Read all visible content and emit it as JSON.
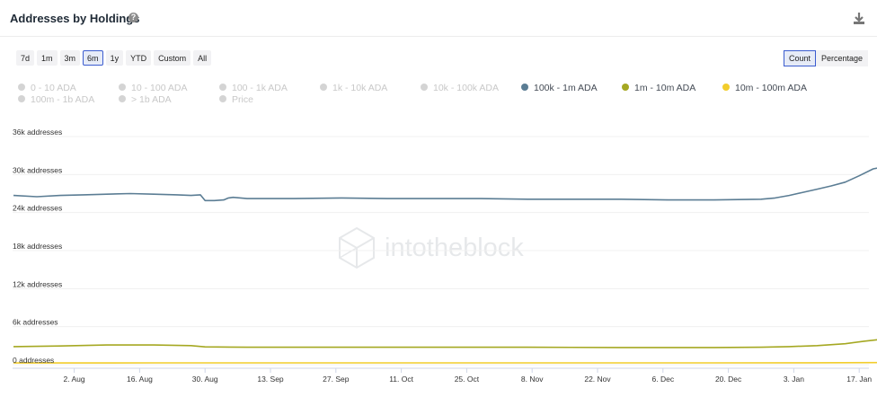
{
  "header": {
    "title": "Addresses by Holdings",
    "help_icon": "question-circle-icon",
    "download_icon": "download-icon"
  },
  "range_buttons": [
    "7d",
    "1m",
    "3m",
    "6m",
    "1y",
    "YTD",
    "Custom",
    "All"
  ],
  "range_selected": "6m",
  "mode_buttons": [
    "Count",
    "Percentage"
  ],
  "mode_selected": "Count",
  "legend": [
    {
      "label": "0 - 10 ADA",
      "active": false,
      "color": "#d4d4d4"
    },
    {
      "label": "10 - 100 ADA",
      "active": false,
      "color": "#d4d4d4"
    },
    {
      "label": "100 - 1k ADA",
      "active": false,
      "color": "#d4d4d4"
    },
    {
      "label": "1k - 10k ADA",
      "active": false,
      "color": "#d4d4d4"
    },
    {
      "label": "10k - 100k ADA",
      "active": false,
      "color": "#d4d4d4"
    },
    {
      "label": "100k - 1m ADA",
      "active": true,
      "color": "#5b7d94"
    },
    {
      "label": "1m - 10m ADA",
      "active": true,
      "color": "#a5a822"
    },
    {
      "label": "10m - 100m ADA",
      "active": true,
      "color": "#f2cd2c"
    },
    {
      "label": "100m - 1b ADA",
      "active": false,
      "color": "#d4d4d4"
    },
    {
      "label": "> 1b ADA",
      "active": false,
      "color": "#d4d4d4"
    },
    {
      "label": "Price",
      "active": false,
      "color": "#d4d4d4"
    }
  ],
  "watermark": "intotheblock",
  "chart_data": {
    "type": "line",
    "title": "Addresses by Holdings",
    "ylim": [
      0,
      36000
    ],
    "yticks": [
      {
        "value": 0,
        "label": "0 addresses"
      },
      {
        "value": 6000,
        "label": "6k addresses"
      },
      {
        "value": 12000,
        "label": "12k addresses"
      },
      {
        "value": 18000,
        "label": "18k addresses"
      },
      {
        "value": 24000,
        "label": "24k addresses"
      },
      {
        "value": 30000,
        "label": "30k addresses"
      },
      {
        "value": 36000,
        "label": "36k addresses"
      }
    ],
    "xticks": [
      {
        "day": 13,
        "label": "2. Aug"
      },
      {
        "day": 27,
        "label": "16. Aug"
      },
      {
        "day": 41,
        "label": "30. Aug"
      },
      {
        "day": 55,
        "label": "13. Sep"
      },
      {
        "day": 69,
        "label": "27. Sep"
      },
      {
        "day": 83,
        "label": "11. Oct"
      },
      {
        "day": 97,
        "label": "25. Oct"
      },
      {
        "day": 111,
        "label": "8. Nov"
      },
      {
        "day": 125,
        "label": "22. Nov"
      },
      {
        "day": 139,
        "label": "6. Dec"
      },
      {
        "day": 153,
        "label": "20. Dec"
      },
      {
        "day": 167,
        "label": "3. Jan"
      },
      {
        "day": 181,
        "label": "17. Jan"
      }
    ],
    "series": [
      {
        "name": "100k - 1m ADA",
        "color": "#5b7d94",
        "points": [
          [
            0,
            26700
          ],
          [
            5,
            26500
          ],
          [
            10,
            26700
          ],
          [
            15,
            26800
          ],
          [
            20,
            26900
          ],
          [
            25,
            27000
          ],
          [
            30,
            26900
          ],
          [
            35,
            26800
          ],
          [
            38,
            26700
          ],
          [
            40,
            26800
          ],
          [
            41,
            25900
          ],
          [
            43,
            25900
          ],
          [
            45,
            26000
          ],
          [
            46,
            26300
          ],
          [
            47,
            26400
          ],
          [
            50,
            26200
          ],
          [
            60,
            26200
          ],
          [
            70,
            26300
          ],
          [
            80,
            26200
          ],
          [
            90,
            26200
          ],
          [
            100,
            26200
          ],
          [
            110,
            26100
          ],
          [
            120,
            26100
          ],
          [
            130,
            26100
          ],
          [
            140,
            26000
          ],
          [
            150,
            26000
          ],
          [
            160,
            26100
          ],
          [
            163,
            26300
          ],
          [
            166,
            26700
          ],
          [
            169,
            27200
          ],
          [
            172,
            27700
          ],
          [
            175,
            28200
          ],
          [
            178,
            28800
          ],
          [
            181,
            29800
          ],
          [
            184,
            30900
          ],
          [
            187,
            31300
          ]
        ]
      },
      {
        "name": "1m - 10m ADA",
        "color": "#a5a822",
        "points": [
          [
            0,
            2850
          ],
          [
            10,
            2950
          ],
          [
            20,
            3100
          ],
          [
            30,
            3100
          ],
          [
            38,
            3000
          ],
          [
            41,
            2800
          ],
          [
            50,
            2750
          ],
          [
            70,
            2750
          ],
          [
            90,
            2750
          ],
          [
            110,
            2750
          ],
          [
            130,
            2700
          ],
          [
            150,
            2700
          ],
          [
            160,
            2750
          ],
          [
            166,
            2850
          ],
          [
            172,
            3000
          ],
          [
            178,
            3300
          ],
          [
            182,
            3700
          ],
          [
            187,
            4100
          ]
        ]
      },
      {
        "name": "10m - 100m ADA",
        "color": "#f2cd2c",
        "points": [
          [
            0,
            270
          ],
          [
            30,
            280
          ],
          [
            60,
            280
          ],
          [
            90,
            285
          ],
          [
            120,
            285
          ],
          [
            150,
            290
          ],
          [
            170,
            300
          ],
          [
            187,
            330
          ]
        ]
      }
    ]
  }
}
